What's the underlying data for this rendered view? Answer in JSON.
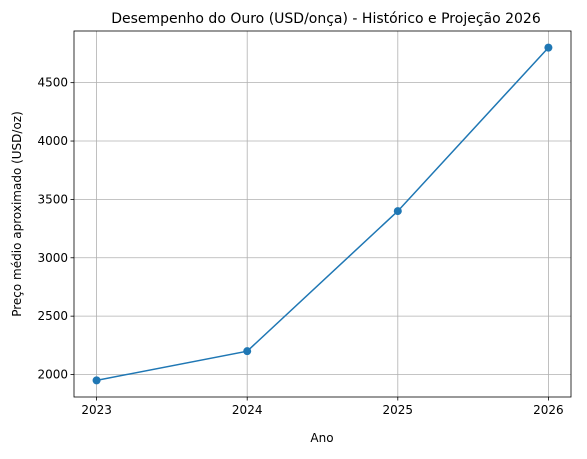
{
  "chart_data": {
    "type": "line",
    "title": "Desempenho do Ouro (USD/onça) - Histórico e Projeção 2026",
    "xlabel": "Ano",
    "ylabel": "Preço médio aproximado (USD/oz)",
    "x": [
      2023,
      2024,
      2025,
      2026
    ],
    "series": [
      {
        "name": "Ouro",
        "color": "#1f77b4",
        "values": [
          1950,
          2200,
          3400,
          4800
        ]
      }
    ],
    "xlim": [
      2022.85,
      2026.15
    ],
    "xticks": [
      2023,
      2024,
      2025,
      2026
    ],
    "ylim": [
      1807.5,
      4942.5
    ],
    "yticks": [
      2000,
      2500,
      3000,
      3500,
      4000,
      4500
    ],
    "grid": true
  }
}
